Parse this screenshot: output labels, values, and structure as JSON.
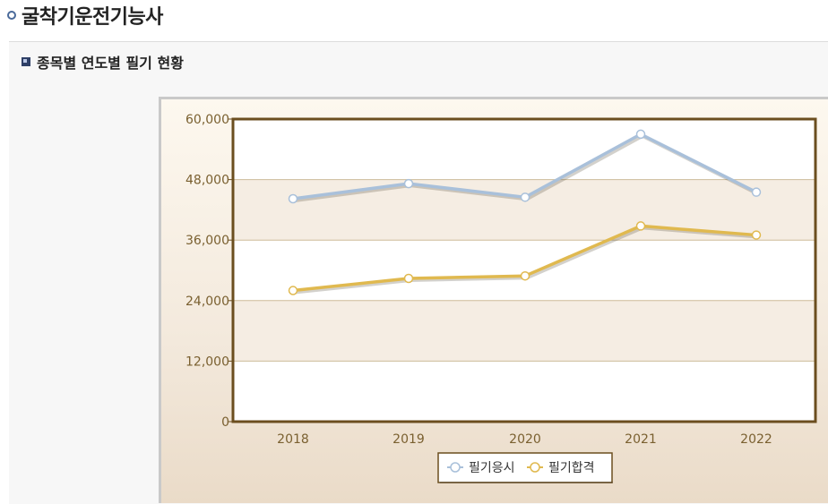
{
  "page": {
    "title": "굴착기운전기능사"
  },
  "section": {
    "title": "종목별 연도별 필기 현황"
  },
  "colors": {
    "series1": "#a9c0da",
    "series2": "#e0b94f",
    "frame": "#6b4e1f",
    "axis_text": "#7a6030",
    "band": "#f5ede3"
  },
  "icons": {
    "title_bullet": "circle-bullet-icon",
    "section_bullet": "square-bullet-icon"
  },
  "chart_data": {
    "type": "line",
    "categories": [
      "2018",
      "2019",
      "2020",
      "2021",
      "2022"
    ],
    "series": [
      {
        "name": "필기응시",
        "values": [
          44200,
          47200,
          44500,
          57000,
          45500
        ]
      },
      {
        "name": "필기합격",
        "values": [
          26000,
          28400,
          28900,
          38800,
          37000
        ]
      }
    ],
    "ylim": [
      0,
      60000
    ],
    "yticks": [
      "0",
      "12,000",
      "24,000",
      "36,000",
      "48,000",
      "60,000"
    ],
    "ytick_values": [
      0,
      12000,
      24000,
      36000,
      48000,
      60000
    ],
    "grid": true,
    "legend_position": "bottom",
    "title": "",
    "xlabel": "",
    "ylabel": ""
  }
}
